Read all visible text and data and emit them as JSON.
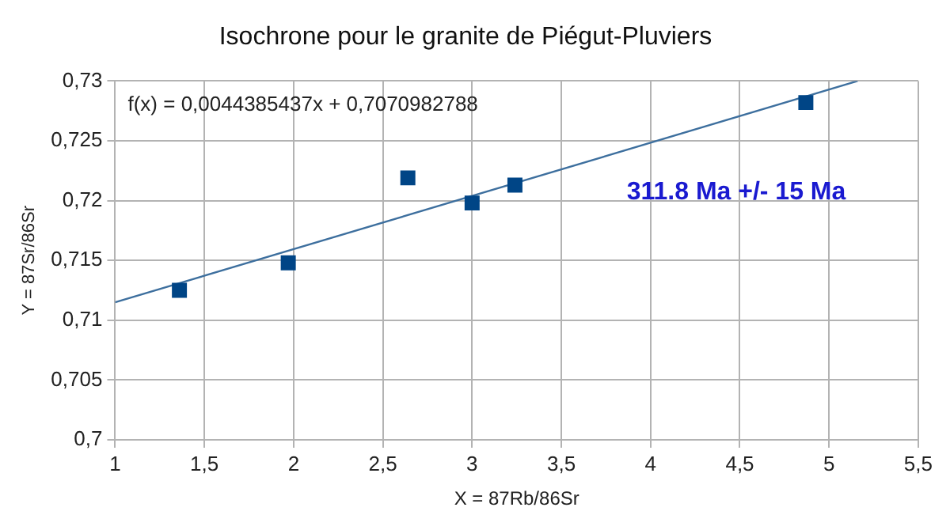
{
  "chart_data": {
    "type": "scatter",
    "title": "Isochrone pour le granite de Piégut-Pluviers",
    "xlabel": "X = 87Rb/86Sr",
    "ylabel": "Y = 87Sr/86Sr",
    "series": [
      {
        "type": "scatter",
        "color": "#004586",
        "x": [
          1.36,
          1.97,
          2.64,
          3.0,
          3.24,
          4.87
        ],
        "values": [
          0.7125,
          0.7148,
          0.7219,
          0.7198,
          0.7213,
          0.7282
        ],
        "marker": "square"
      },
      {
        "type": "line",
        "color": "#3d6f9e",
        "x": [
          1,
          5.16
        ],
        "values": [
          0.7115,
          0.73
        ],
        "marker": "none",
        "line_style": "solid"
      }
    ],
    "xlim": [
      1,
      5.5
    ],
    "xticks": [
      1,
      {
        "value": 1.5,
        "label": "1,5"
      },
      2,
      {
        "value": 2.5,
        "label": "2,5"
      },
      3,
      {
        "value": 3.5,
        "label": "3,5"
      },
      4,
      {
        "value": 4.5,
        "label": "4,5"
      },
      5,
      {
        "value": 5.5,
        "label": "5,5"
      }
    ],
    "ylim": [
      0.7,
      0.73
    ],
    "yticks": [
      {
        "value": 0.7,
        "label": "0,7"
      },
      {
        "value": 0.705,
        "label": "0,705"
      },
      {
        "value": 0.71,
        "label": "0,71"
      },
      {
        "value": 0.715,
        "label": "0,715"
      },
      {
        "value": 0.72,
        "label": "0,72"
      },
      {
        "value": 0.725,
        "label": "0,725"
      },
      {
        "value": 0.73,
        "label": "0,73"
      }
    ],
    "annotations": [
      "f(x) = 0,0044385437x + 0,7070982788",
      "311.8 Ma +/- 15 Ma"
    ],
    "grid": true,
    "legend": false
  }
}
